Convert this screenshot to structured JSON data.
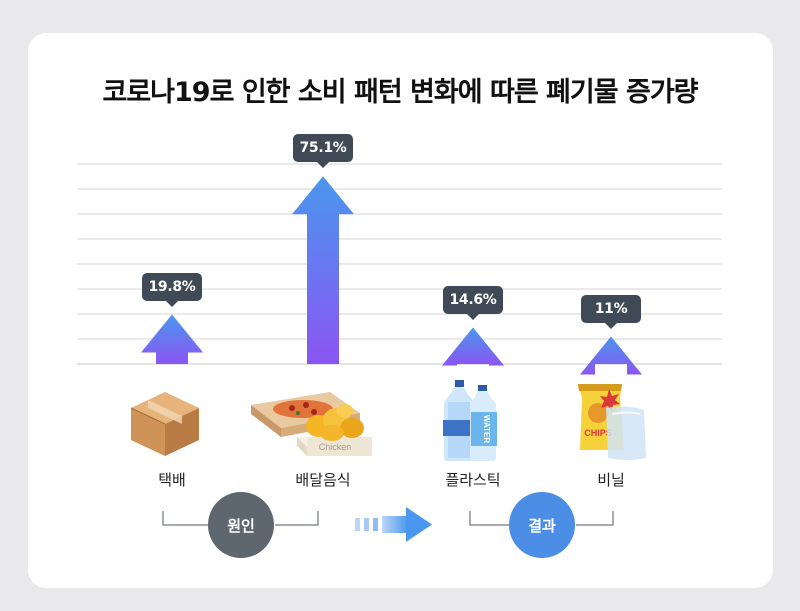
{
  "title": "코로나19로 인한 소비 패턴 변화에 따른 폐기물 증가량",
  "chart_data": {
    "type": "bar",
    "categories": [
      "택배",
      "배달음식",
      "플라스틱",
      "비닐"
    ],
    "values": [
      19.8,
      75.1,
      14.6,
      11
    ],
    "value_labels": [
      "19.8%",
      "75.1%",
      "14.6%",
      "11%"
    ],
    "unit": "%",
    "ylim": [
      0,
      80
    ],
    "grid": true,
    "bar_style": "upward-arrow",
    "colors": {
      "top": "#4a97ee",
      "bottom": "#8b55f2"
    }
  },
  "groups": {
    "cause_label": "원인",
    "result_label": "결과"
  },
  "icons": {
    "package": "cardboard-box-icon",
    "food": "pizza-and-chicken-box-icon",
    "plastic": "plastic-water-bottles-icon",
    "vinyl": "chips-bag-and-vinyl-icon"
  },
  "icon_text": {
    "chicken": "Chicken",
    "water": "WATER",
    "chips": "CHIPS"
  },
  "palette": {
    "cause_circle": "#5e6670",
    "result_circle": "#4c8ee6",
    "flow_arrow": "#4a97ee"
  }
}
